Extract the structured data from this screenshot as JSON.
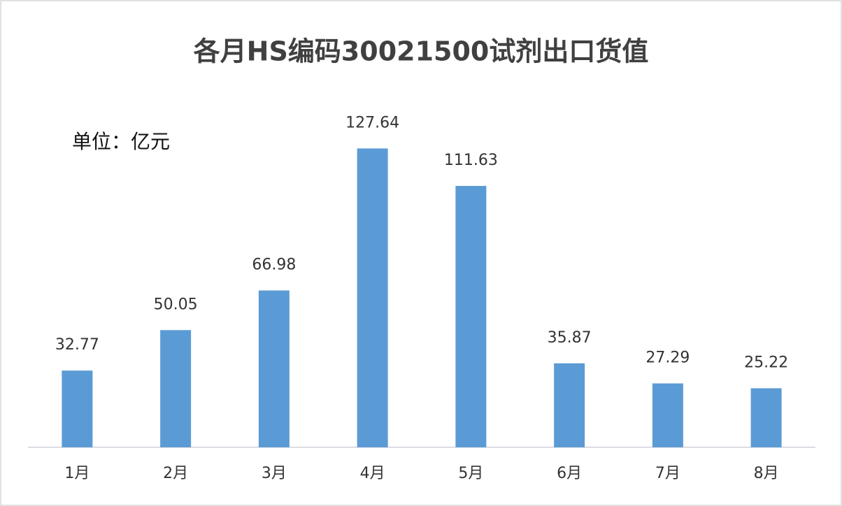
{
  "chart_data": {
    "type": "bar",
    "title": "各月HS编码30021500试剂出口货值",
    "annotation": "单位：亿元",
    "categories": [
      "1月",
      "2月",
      "3月",
      "4月",
      "5月",
      "6月",
      "7月",
      "8月"
    ],
    "values": [
      32.77,
      50.05,
      66.98,
      127.64,
      111.63,
      35.87,
      27.29,
      25.22
    ],
    "color": "#5b9bd5",
    "ylim": [
      0,
      140
    ]
  }
}
